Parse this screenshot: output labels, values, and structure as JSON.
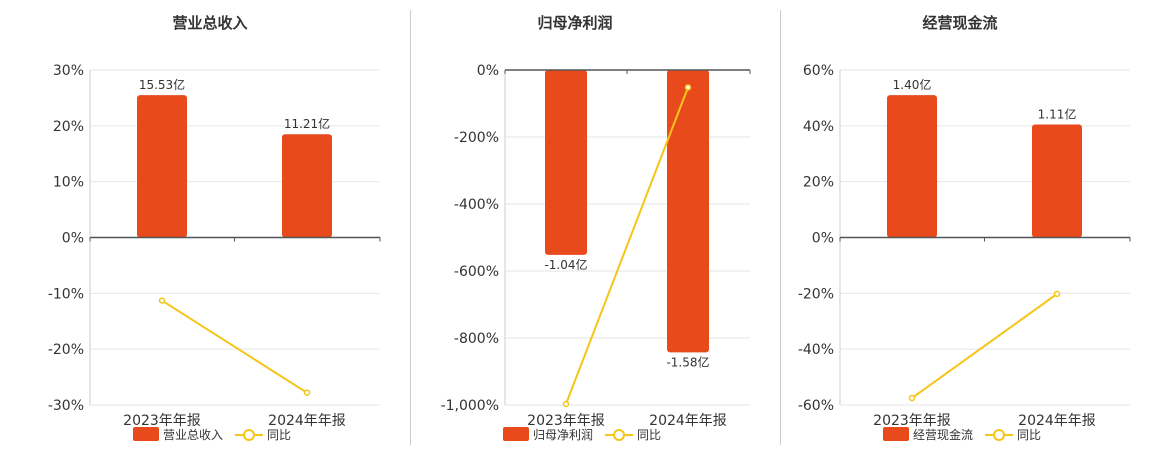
{
  "colors": {
    "bar": "#e84a1c",
    "line": "#f5c518",
    "grid": "#e6e6e6",
    "axis": "#555555",
    "divider": "#cccccc"
  },
  "chart_data": [
    {
      "type": "bar",
      "title": "营业总收入",
      "categories": [
        "2023年年报",
        "2024年年报"
      ],
      "ylim": [
        -30,
        30
      ],
      "yticks": [
        "30%",
        "20%",
        "10%",
        "0%",
        "-10%",
        "-20%",
        "-30%"
      ],
      "ytick_values": [
        30,
        20,
        10,
        0,
        -10,
        -20,
        -30
      ],
      "bar_percent": [
        25.5,
        18.5
      ],
      "bar_labels": [
        "15.53亿",
        "11.21亿"
      ],
      "yoy": [
        -11.3,
        -27.8
      ],
      "legend": [
        "营业总收入",
        "同比"
      ],
      "legend_position": "bottom"
    },
    {
      "type": "bar",
      "title": "归母净利润",
      "categories": [
        "2023年年报",
        "2024年年报"
      ],
      "ylim": [
        -1000,
        0
      ],
      "yticks": [
        "0%",
        "-200%",
        "-400%",
        "-600%",
        "-800%",
        "-1,000%"
      ],
      "ytick_values": [
        0,
        -200,
        -400,
        -600,
        -800,
        -1000
      ],
      "bar_percent": [
        -552,
        -843
      ],
      "bar_labels": [
        "-1.04亿",
        "-1.58亿"
      ],
      "yoy": [
        -997,
        -52
      ],
      "legend": [
        "归母净利润",
        "同比"
      ],
      "legend_position": "bottom"
    },
    {
      "type": "bar",
      "title": "经营现金流",
      "categories": [
        "2023年年报",
        "2024年年报"
      ],
      "ylim": [
        -60,
        60
      ],
      "yticks": [
        "60%",
        "40%",
        "20%",
        "0%",
        "-20%",
        "-40%",
        "-60%"
      ],
      "ytick_values": [
        60,
        40,
        20,
        0,
        -20,
        -40,
        -60
      ],
      "bar_percent": [
        51,
        40.5
      ],
      "bar_labels": [
        "1.40亿",
        "1.11亿"
      ],
      "yoy": [
        -57.5,
        -20.2
      ],
      "legend": [
        "经营现金流",
        "同比"
      ],
      "legend_position": "bottom"
    }
  ]
}
